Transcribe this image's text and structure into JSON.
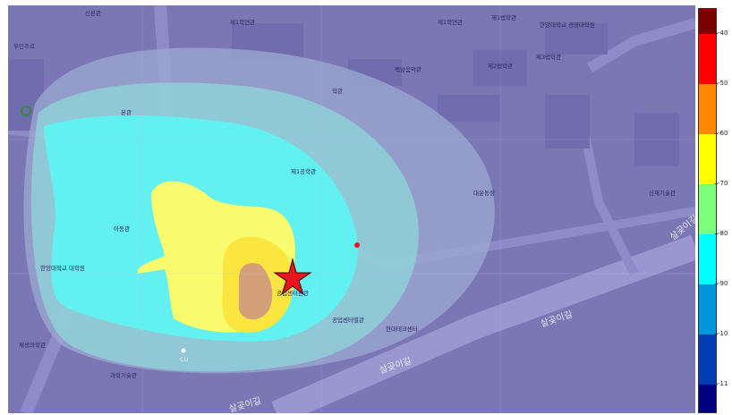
{
  "map": {
    "building_labels": [
      {
        "id": "sinbon",
        "text": "신본관"
      },
      {
        "id": "muinjureo",
        "text": "무인주르"
      },
      {
        "id": "je1hak1",
        "text": "제1학연관"
      },
      {
        "id": "je1hak2",
        "text": "제1학연관"
      },
      {
        "id": "je1beob",
        "text": "제1법학관"
      },
      {
        "id": "hanyang_grad",
        "text": "한양대학교 경영대학원"
      },
      {
        "id": "baeknam",
        "text": "백남음악관"
      },
      {
        "id": "je2beob",
        "text": "제2법학관"
      },
      {
        "id": "je3beob",
        "text": "제3법학관"
      },
      {
        "id": "hakgwan",
        "text": "학관"
      },
      {
        "id": "bongwan",
        "text": "본관"
      },
      {
        "id": "je1gong",
        "text": "제1공학관"
      },
      {
        "id": "daeunsang",
        "text": "대운동장"
      },
      {
        "id": "sinjikgi",
        "text": "신재기술관"
      },
      {
        "id": "ahyeon",
        "text": "아동관"
      },
      {
        "id": "hanyang_univ",
        "text": "한양대학교 대학원"
      },
      {
        "id": "gonghak_right",
        "text": "공업센터별관"
      },
      {
        "id": "target",
        "text": "공업센터본관"
      },
      {
        "id": "hyundai",
        "text": "현대테크센터"
      },
      {
        "id": "jesaeng",
        "text": "제생의학관"
      },
      {
        "id": "gwahak",
        "text": "과학기술관"
      },
      {
        "id": "cu",
        "text": "CU"
      }
    ],
    "road_labels": [
      {
        "id": "road1",
        "text": "살곶이길"
      },
      {
        "id": "road2",
        "text": "살곶이길"
      },
      {
        "id": "road3",
        "text": "살곶이길"
      },
      {
        "id": "road4",
        "text": "살곶이길"
      }
    ],
    "marker_icon": "star-icon",
    "marker_color": "#e8141e",
    "point_color": "#e8141e"
  },
  "colorbar": {
    "ticks": [
      "-40",
      "-50",
      "-60",
      "-70",
      "-80",
      "-90",
      "-10",
      "-11"
    ],
    "colors": [
      "#7d0000",
      "#ff0000",
      "#ff8800",
      "#ffff00",
      "#7dff7d",
      "#00ffff",
      "#0096dc",
      "#003cb4",
      "#000080"
    ]
  }
}
